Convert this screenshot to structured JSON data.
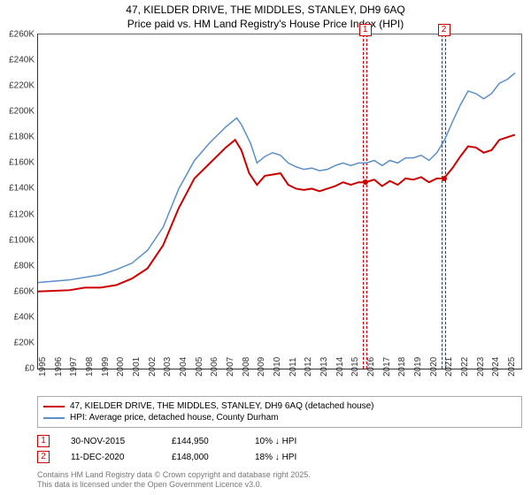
{
  "title": "47, KIELDER DRIVE, THE MIDDLES, STANLEY, DH9 6AQ",
  "subtitle": "Price paid vs. HM Land Registry's House Price Index (HPI)",
  "chart": {
    "type": "line",
    "xlim": [
      1995,
      2025.9
    ],
    "ylim": [
      0,
      260000
    ],
    "ytick_step": 20000,
    "ytick_prefix": "£",
    "ytick_suffix_k": "K",
    "xticks": [
      1995,
      1996,
      1997,
      1998,
      1999,
      2000,
      2001,
      2002,
      2003,
      2004,
      2005,
      2006,
      2007,
      2008,
      2009,
      2010,
      2011,
      2012,
      2013,
      2014,
      2015,
      2016,
      2017,
      2018,
      2019,
      2020,
      2021,
      2022,
      2023,
      2024,
      2025
    ],
    "grid_color": "#666666",
    "background_color": "#ffffff",
    "series": [
      {
        "id": "price_paid",
        "label": "47, KIELDER DRIVE, THE MIDDLES, STANLEY, DH9 6AQ (detached house)",
        "color": "#cc0000",
        "width": 2,
        "data": [
          [
            1995,
            60000
          ],
          [
            1996,
            60500
          ],
          [
            1997,
            61000
          ],
          [
            1998,
            63000
          ],
          [
            1999,
            63000
          ],
          [
            2000,
            65000
          ],
          [
            2001,
            70000
          ],
          [
            2002,
            78000
          ],
          [
            2003,
            96000
          ],
          [
            2004,
            125000
          ],
          [
            2005,
            148000
          ],
          [
            2006,
            160000
          ],
          [
            2007,
            172000
          ],
          [
            2007.6,
            178000
          ],
          [
            2008,
            170000
          ],
          [
            2008.5,
            152000
          ],
          [
            2009,
            143000
          ],
          [
            2009.5,
            150000
          ],
          [
            2010,
            151000
          ],
          [
            2010.5,
            152000
          ],
          [
            2011,
            143000
          ],
          [
            2011.5,
            140000
          ],
          [
            2012,
            139000
          ],
          [
            2012.5,
            140000
          ],
          [
            2013,
            138000
          ],
          [
            2013.5,
            140000
          ],
          [
            2014,
            142000
          ],
          [
            2014.5,
            145000
          ],
          [
            2015,
            143000
          ],
          [
            2015.5,
            145000
          ],
          [
            2015.92,
            144950
          ],
          [
            2016.5,
            147000
          ],
          [
            2017,
            142000
          ],
          [
            2017.5,
            146000
          ],
          [
            2018,
            143000
          ],
          [
            2018.5,
            148000
          ],
          [
            2019,
            147000
          ],
          [
            2019.5,
            149000
          ],
          [
            2020,
            145000
          ],
          [
            2020.5,
            148000
          ],
          [
            2020.95,
            148000
          ],
          [
            2021.5,
            156000
          ],
          [
            2022,
            165000
          ],
          [
            2022.5,
            173000
          ],
          [
            2023,
            172000
          ],
          [
            2023.5,
            168000
          ],
          [
            2024,
            170000
          ],
          [
            2024.5,
            178000
          ],
          [
            2025,
            180000
          ],
          [
            2025.5,
            182000
          ]
        ]
      },
      {
        "id": "hpi",
        "label": "HPI: Average price, detached house, County Durham",
        "color": "#5b8fc7",
        "width": 1.5,
        "data": [
          [
            1995,
            67000
          ],
          [
            1996,
            68000
          ],
          [
            1997,
            69000
          ],
          [
            1998,
            71000
          ],
          [
            1999,
            73000
          ],
          [
            2000,
            77000
          ],
          [
            2001,
            82000
          ],
          [
            2002,
            92000
          ],
          [
            2003,
            110000
          ],
          [
            2004,
            140000
          ],
          [
            2005,
            162000
          ],
          [
            2006,
            176000
          ],
          [
            2007,
            188000
          ],
          [
            2007.7,
            195000
          ],
          [
            2008,
            190000
          ],
          [
            2008.6,
            175000
          ],
          [
            2009,
            160000
          ],
          [
            2009.5,
            165000
          ],
          [
            2010,
            168000
          ],
          [
            2010.5,
            166000
          ],
          [
            2011,
            160000
          ],
          [
            2011.5,
            157000
          ],
          [
            2012,
            155000
          ],
          [
            2012.5,
            156000
          ],
          [
            2013,
            154000
          ],
          [
            2013.5,
            155000
          ],
          [
            2014,
            158000
          ],
          [
            2014.5,
            160000
          ],
          [
            2015,
            158000
          ],
          [
            2015.5,
            160000
          ],
          [
            2016,
            160000
          ],
          [
            2016.5,
            162000
          ],
          [
            2017,
            158000
          ],
          [
            2017.5,
            162000
          ],
          [
            2018,
            160000
          ],
          [
            2018.5,
            164000
          ],
          [
            2019,
            164000
          ],
          [
            2019.5,
            166000
          ],
          [
            2020,
            162000
          ],
          [
            2020.5,
            168000
          ],
          [
            2021,
            178000
          ],
          [
            2021.5,
            192000
          ],
          [
            2022,
            205000
          ],
          [
            2022.5,
            216000
          ],
          [
            2023,
            214000
          ],
          [
            2023.5,
            210000
          ],
          [
            2024,
            214000
          ],
          [
            2024.5,
            222000
          ],
          [
            2025,
            225000
          ],
          [
            2025.5,
            230000
          ]
        ]
      }
    ],
    "markers": [
      {
        "n": "1",
        "x": 2015.92,
        "y": 144950,
        "band_width_years": 0.3
      },
      {
        "n": "2",
        "x": 2020.95,
        "y": 148000,
        "band_width_years": 0.3
      }
    ]
  },
  "legend": {
    "border_color": "#aaaaaa"
  },
  "transactions": [
    {
      "n": "1",
      "date": "30-NOV-2015",
      "price": "£144,950",
      "delta": "10% ↓ HPI"
    },
    {
      "n": "2",
      "date": "11-DEC-2020",
      "price": "£148,000",
      "delta": "18% ↓ HPI"
    }
  ],
  "footer": {
    "line1": "Contains HM Land Registry data © Crown copyright and database right 2025.",
    "line2": "This data is licensed under the Open Government Licence v3.0."
  }
}
